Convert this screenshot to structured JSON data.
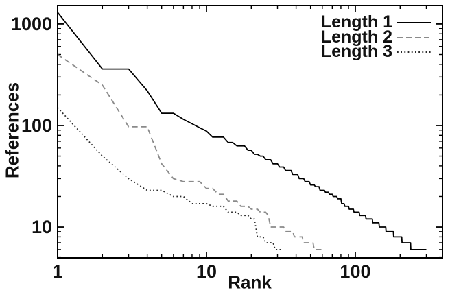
{
  "chart_data": {
    "type": "line",
    "title": "",
    "xlabel": "Rank",
    "ylabel": "References",
    "x_scale": "log",
    "y_scale": "log",
    "xlim": [
      1,
      385
    ],
    "ylim": [
      4.97,
      1520
    ],
    "x_ticks": [
      1,
      10,
      100
    ],
    "x_tick_labels": [
      "1",
      "10",
      "100"
    ],
    "y_ticks": [
      10,
      100,
      1000
    ],
    "y_tick_labels": [
      "10",
      "100",
      "1000"
    ],
    "grid": false,
    "legend_position": "top-right-inside",
    "background_color": "#ffffff",
    "axis_color": "#000000",
    "run_format": "[references, rank_first, rank_last]",
    "series": [
      {
        "name": "Length 1",
        "style": "solid",
        "color": "#000000",
        "runs": [
          [
            1300,
            1,
            1
          ],
          [
            360,
            2,
            3
          ],
          [
            220,
            4,
            4
          ],
          [
            132,
            5,
            6
          ],
          [
            115,
            7,
            7
          ],
          [
            104,
            8,
            8
          ],
          [
            95,
            9,
            9
          ],
          [
            88,
            10,
            10
          ],
          [
            77,
            11,
            13
          ],
          [
            68,
            14,
            15
          ],
          [
            63,
            16,
            18
          ],
          [
            57,
            19,
            20
          ],
          [
            52,
            21,
            22
          ],
          [
            50,
            23,
            24
          ],
          [
            46,
            25,
            27
          ],
          [
            42,
            28,
            30
          ],
          [
            39,
            31,
            33
          ],
          [
            36,
            34,
            37
          ],
          [
            33,
            38,
            41
          ],
          [
            30,
            42,
            45
          ],
          [
            28,
            46,
            49
          ],
          [
            26,
            50,
            53
          ],
          [
            25,
            54,
            57
          ],
          [
            23,
            58,
            62
          ],
          [
            22,
            63,
            66
          ],
          [
            21,
            67,
            70
          ],
          [
            20,
            71,
            75
          ],
          [
            19,
            76,
            80
          ],
          [
            17,
            81,
            84
          ],
          [
            16,
            85,
            90
          ],
          [
            15,
            91,
            97
          ],
          [
            14,
            98,
            106
          ],
          [
            13,
            107,
            117
          ],
          [
            12,
            118,
            130
          ],
          [
            11,
            131,
            144
          ],
          [
            10,
            145,
            160
          ],
          [
            9,
            161,
            180
          ],
          [
            8,
            181,
            205
          ],
          [
            7,
            206,
            235
          ],
          [
            6,
            236,
            300
          ]
        ]
      },
      {
        "name": "Length 2",
        "style": "dashed",
        "color": "#8a8a8a",
        "runs": [
          [
            500,
            1,
            1
          ],
          [
            250,
            2,
            2
          ],
          [
            97,
            3,
            4
          ],
          [
            42,
            5,
            5
          ],
          [
            30,
            6,
            6
          ],
          [
            28,
            7,
            9
          ],
          [
            24,
            10,
            11
          ],
          [
            21,
            12,
            13
          ],
          [
            18,
            14,
            16
          ],
          [
            16,
            17,
            19
          ],
          [
            15,
            20,
            22
          ],
          [
            14,
            23,
            25
          ],
          [
            13,
            26,
            26
          ],
          [
            10,
            27,
            33
          ],
          [
            9,
            34,
            38
          ],
          [
            8,
            39,
            44
          ],
          [
            7,
            45,
            52
          ],
          [
            6,
            53,
            62
          ]
        ]
      },
      {
        "name": "Length 3",
        "style": "dotted",
        "color": "#2a2a2a",
        "runs": [
          [
            150,
            1,
            1
          ],
          [
            50,
            2,
            2
          ],
          [
            30,
            3,
            3
          ],
          [
            23,
            4,
            5
          ],
          [
            20,
            6,
            7
          ],
          [
            17,
            8,
            10
          ],
          [
            16,
            11,
            13
          ],
          [
            14,
            14,
            16
          ],
          [
            13,
            17,
            19
          ],
          [
            12,
            20,
            21
          ],
          [
            8,
            22,
            24
          ],
          [
            7,
            25,
            28
          ],
          [
            6,
            29,
            32
          ]
        ]
      }
    ]
  },
  "legend": {
    "items": [
      {
        "label": "Length 1"
      },
      {
        "label": "Length 2"
      },
      {
        "label": "Length 3"
      }
    ]
  }
}
